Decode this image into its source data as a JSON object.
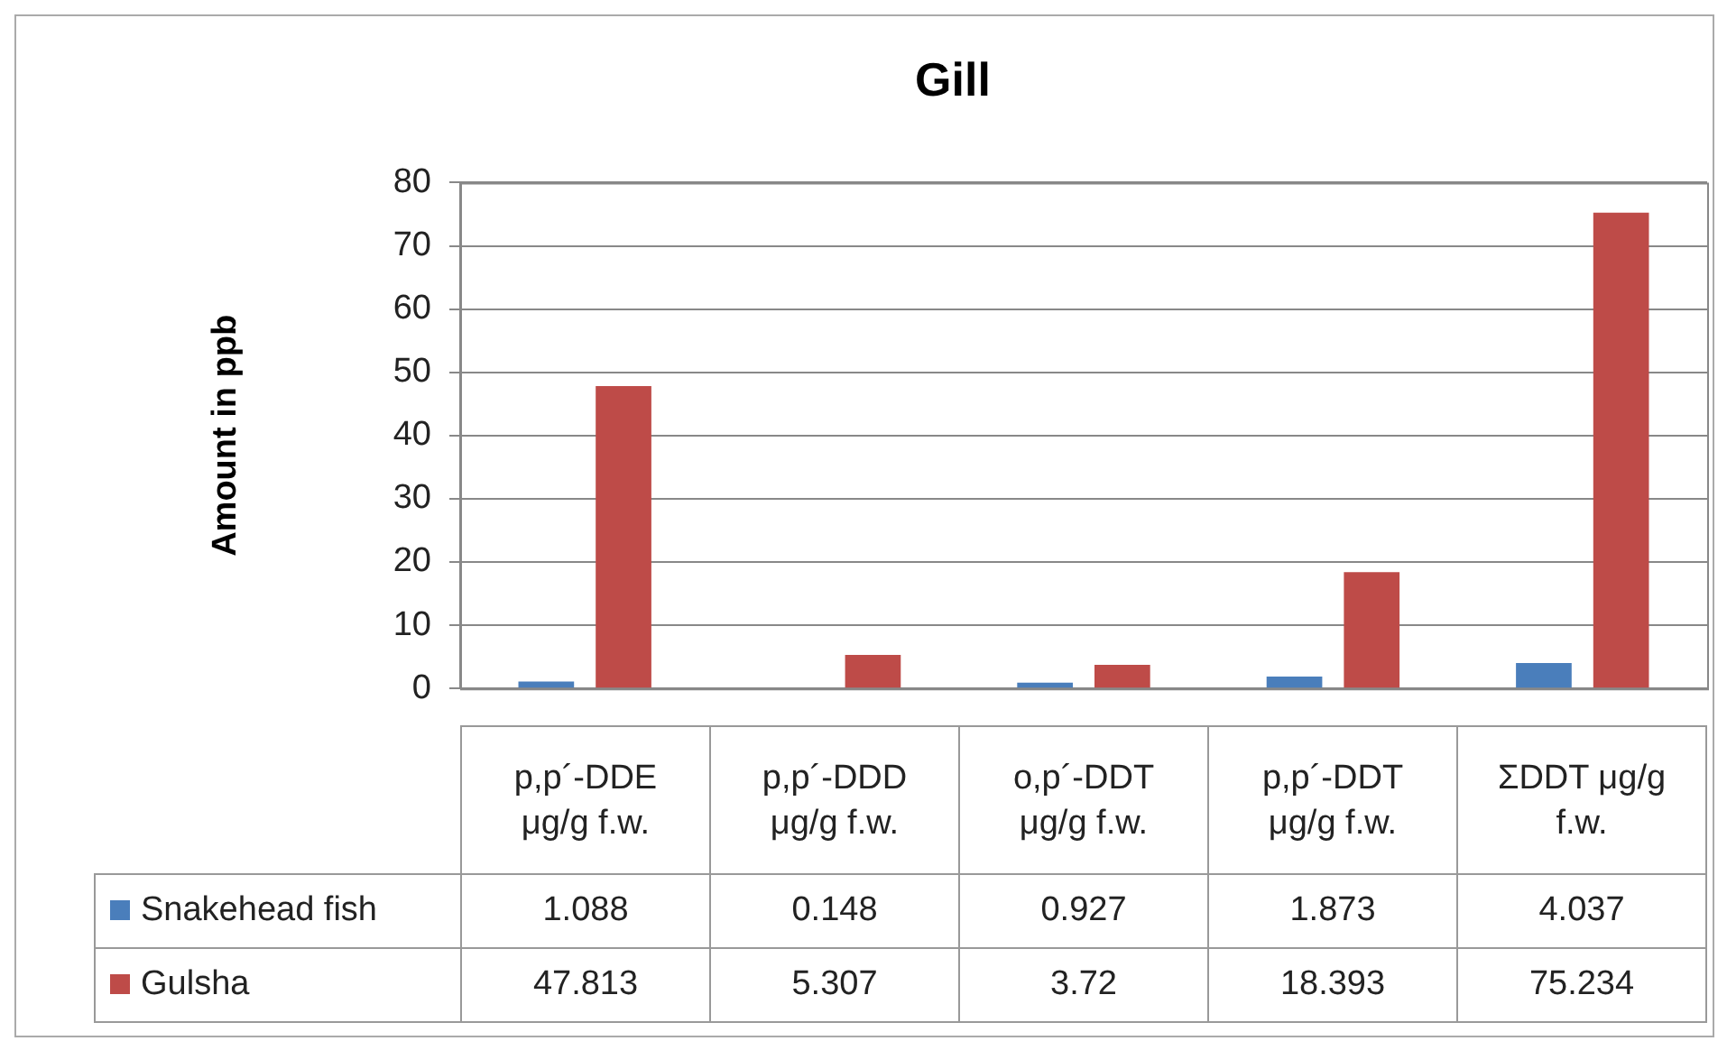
{
  "chart_data": {
    "type": "bar",
    "title": "Gill",
    "ylabel": "Amount in ppb",
    "categories": [
      "p,p´-DDE μg/g f.w.",
      "p,p´-DDD μg/g f.w.",
      "o,p´-DDT μg/g f.w.",
      "p,p´-DDT μg/g f.w.",
      "ΣDDT μg/g f.w."
    ],
    "series": [
      {
        "name": "Snakehead fish",
        "color": "#4a7ebb",
        "values": [
          1.088,
          0.148,
          0.927,
          1.873,
          4.037
        ]
      },
      {
        "name": "Gulsha",
        "color": "#be4b48",
        "values": [
          47.813,
          5.307,
          3.72,
          18.393,
          75.234
        ]
      }
    ],
    "ylim": [
      0,
      80
    ],
    "yticks": [
      0,
      10,
      20,
      30,
      40,
      50,
      60,
      70,
      80
    ],
    "grid": "y",
    "legend": "bottom",
    "data_labels": true
  }
}
